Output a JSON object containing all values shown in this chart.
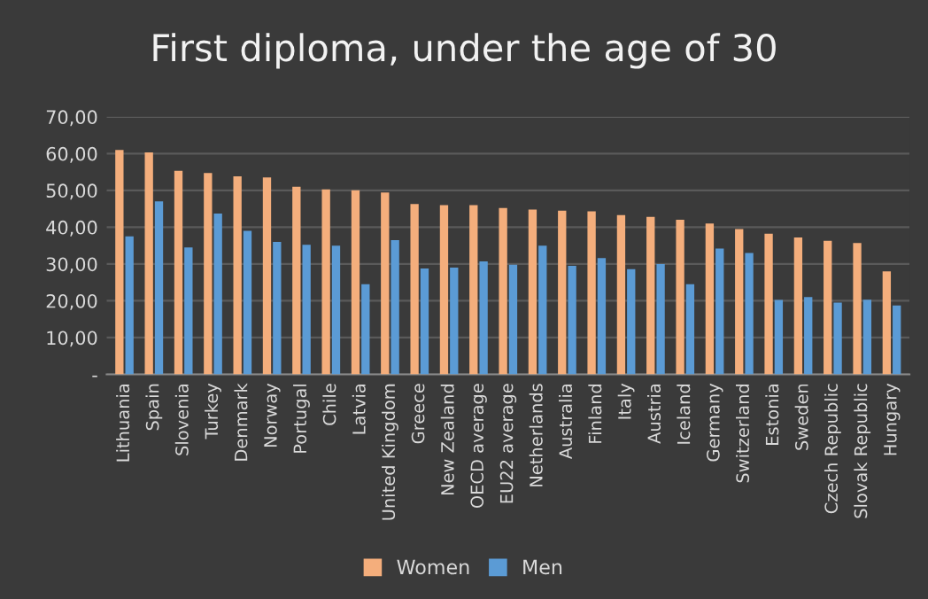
{
  "chart_data": {
    "type": "bar",
    "title": "First diploma, under the age of 30",
    "categories": [
      "Lithuania",
      "Spain",
      "Slovenia",
      "Turkey",
      "Denmark",
      "Norway",
      "Portugal",
      "Chile",
      "Latvia",
      "United Kingdom",
      "Greece",
      "New Zealand",
      "OECD average",
      "EU22 average",
      "Netherlands",
      "Australia",
      "Finland",
      "Italy",
      "Austria",
      "Iceland",
      "Germany",
      "Switzerland",
      "Estonia",
      "Sweden",
      "Czech Republic",
      "Slovak Republic",
      "Hungary"
    ],
    "series": [
      {
        "name": "Women",
        "color": "#f4ae7c",
        "values": [
          61,
          60.3,
          55.3,
          54.7,
          53.8,
          53.5,
          51,
          50.3,
          50,
          49.4,
          46.3,
          46,
          46,
          45.2,
          44.8,
          44.5,
          44.3,
          43.3,
          42.8,
          42,
          41,
          39.5,
          38.2,
          37.2,
          36.3,
          35.7,
          28
        ]
      },
      {
        "name": "Men",
        "color": "#5b9bd5",
        "values": [
          37.5,
          47,
          34.5,
          43.7,
          39,
          36,
          35.2,
          35,
          24.5,
          36.5,
          28.8,
          29,
          30.7,
          29.8,
          35,
          29.5,
          31.6,
          28.6,
          30,
          24.5,
          34.2,
          33,
          20.2,
          21,
          19.5,
          20.3,
          18.7
        ]
      }
    ],
    "ylim": [
      0,
      70
    ],
    "yticks": [
      {
        "value": 0,
        "label": "-"
      },
      {
        "value": 10,
        "label": "10,00"
      },
      {
        "value": 20,
        "label": "20,00"
      },
      {
        "value": 30,
        "label": "30,00"
      },
      {
        "value": 40,
        "label": "40,00"
      },
      {
        "value": 50,
        "label": "50,00"
      },
      {
        "value": 60,
        "label": "60,00"
      },
      {
        "value": 70,
        "label": "70,00"
      }
    ],
    "grid": "y",
    "legend": "bottom"
  }
}
